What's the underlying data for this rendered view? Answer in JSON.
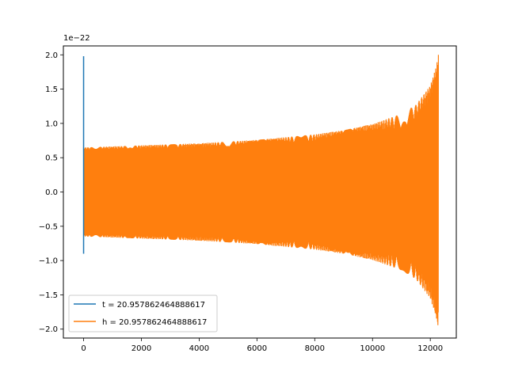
{
  "chart_data": {
    "type": "line",
    "title": "",
    "xlabel": "",
    "ylabel": "",
    "y_offset_label": "1e−22",
    "xlim": [
      -700,
      12900
    ],
    "ylim": [
      -2.13,
      2.13
    ],
    "x_ticks": [
      0,
      2000,
      4000,
      6000,
      8000,
      10000,
      12000
    ],
    "x_tick_labels": [
      "0",
      "2000",
      "4000",
      "6000",
      "8000",
      "10000",
      "12000"
    ],
    "y_ticks": [
      2.0,
      1.5,
      1.0,
      0.5,
      0.0,
      -0.5,
      -1.0,
      -1.5,
      -2.0
    ],
    "y_tick_labels": [
      "2.0",
      "1.5",
      "1.0",
      "0.5",
      "0.0",
      "−0.5",
      "−1.0",
      "−1.5",
      "−2.0"
    ],
    "grid": false,
    "legend_position": "lower-left",
    "series": [
      {
        "name": "t = 20.957862464888617",
        "color": "#1f77b4",
        "description": "spike near x = 0",
        "x": [
          0,
          0,
          0,
          0
        ],
        "y": [
          -0.9,
          1.98,
          -0.65,
          0.0
        ]
      },
      {
        "name": "h = 20.957862464888617",
        "color": "#ff7f0e",
        "description": "chirp oscillation, amplitude envelope grows toward merger",
        "x_start": 0,
        "x_end": 12280,
        "envelope_x": [
          0,
          2000,
          4000,
          6000,
          8000,
          9000,
          10000,
          11000,
          11500,
          12000,
          12200,
          12280
        ],
        "envelope_y": [
          0.65,
          0.68,
          0.71,
          0.76,
          0.84,
          0.9,
          0.99,
          1.14,
          1.27,
          1.55,
          1.82,
          2.0
        ],
        "cycles": 480
      }
    ]
  }
}
